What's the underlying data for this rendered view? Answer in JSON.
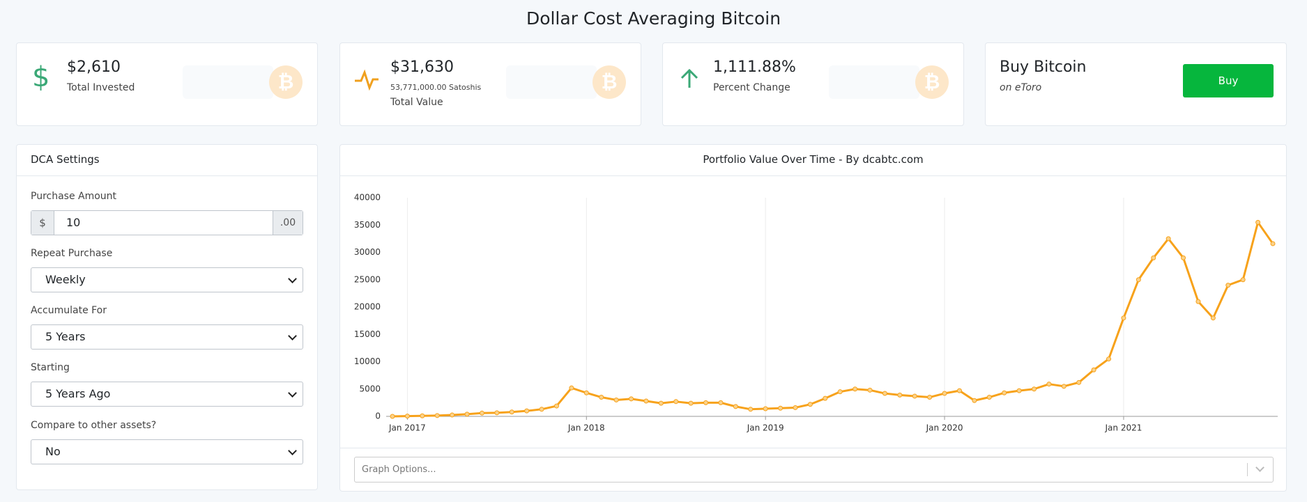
{
  "header": {
    "title": "Dollar Cost Averaging Bitcoin"
  },
  "cards": [
    {
      "value": "$2,610",
      "label": "Total Invested"
    },
    {
      "value": "$31,630",
      "sub": "53,771,000.00 Satoshis",
      "label": "Total Value"
    },
    {
      "value": "1,111.88%",
      "label": "Percent Change"
    },
    {
      "value": "Buy Bitcoin",
      "label": "on eToro",
      "button": "Buy"
    }
  ],
  "settings": {
    "title": "DCA Settings",
    "purchase_amount": {
      "label": "Purchase Amount",
      "prefix": "$",
      "value": "10",
      "suffix": ".00"
    },
    "repeat": {
      "label": "Repeat Purchase",
      "value": "Weekly"
    },
    "accumulate": {
      "label": "Accumulate For",
      "value": "5 Years"
    },
    "starting": {
      "label": "Starting",
      "value": "5 Years Ago"
    },
    "compare": {
      "label": "Compare to other assets?",
      "value": "No"
    }
  },
  "graph_options": "Graph Options...",
  "chart_data": {
    "type": "line",
    "title": "Portfolio Value Over Time - By dcabtc.com",
    "categories": [
      null,
      "Jan 2017",
      null,
      null,
      null,
      null,
      null,
      null,
      null,
      null,
      null,
      null,
      null,
      "Jan 2018",
      null,
      null,
      null,
      null,
      null,
      null,
      null,
      null,
      null,
      null,
      null,
      "Jan 2019",
      null,
      null,
      null,
      null,
      null,
      null,
      null,
      null,
      null,
      null,
      null,
      "Jan 2020",
      null,
      null,
      null,
      null,
      null,
      null,
      null,
      null,
      null,
      null,
      null,
      "Jan 2021",
      null,
      null,
      null,
      null,
      null,
      null,
      null,
      null,
      null,
      null
    ],
    "series": [
      {
        "name": "Portfolio Value",
        "color": "#f7a21b",
        "values": [
          0,
          50,
          100,
          150,
          250,
          400,
          600,
          650,
          800,
          1000,
          1300,
          1900,
          5200,
          4300,
          3500,
          3000,
          3200,
          2800,
          2400,
          2700,
          2400,
          2500,
          2500,
          1800,
          1300,
          1400,
          1500,
          1600,
          2200,
          3300,
          4500,
          5000,
          4800,
          4200,
          3900,
          3700,
          3500,
          4200,
          4700,
          2900,
          3500,
          4300,
          4700,
          5000,
          5900,
          5500,
          6200,
          8500,
          10500,
          18000,
          25000,
          29000,
          32500,
          29000,
          21000,
          18000,
          24000,
          25000,
          35500,
          31600
        ]
      }
    ],
    "ylim": [
      0,
      40000
    ],
    "yticks": [
      0,
      5000,
      10000,
      15000,
      20000,
      25000,
      30000,
      35000,
      40000
    ],
    "grid": "x"
  }
}
